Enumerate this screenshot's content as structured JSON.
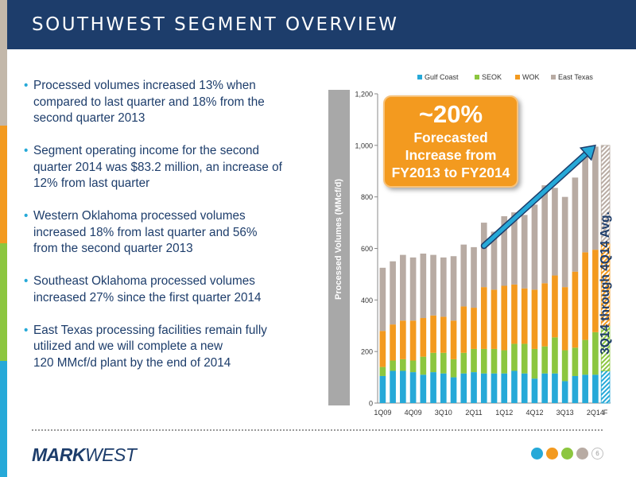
{
  "header": {
    "title": "SOUTHWEST SEGMENT OVERVIEW"
  },
  "colors": {
    "navy": "#1d3d6b",
    "accent_strip": [
      "#c3b8aa",
      "#f39a1f",
      "#8cc63f",
      "#26a9d8"
    ]
  },
  "bullets": [
    "Processed volumes increased 13% when\ncompared to last quarter and 18% from the\nsecond quarter 2013",
    "Segment operating income for the second\nquarter 2014 was $83.2 million, an increase of\n12% from last quarter",
    "Western Oklahoma processed volumes\nincreased 18% from last quarter and 56%\nfrom the second quarter 2013",
    "Southeast Oklahoma processed volumes\nincreased 27% since the first quarter 2014",
    "East Texas processing facilities remain fully\nutilized and we will complete a new\n120 MMcf/d plant by the end of 2014"
  ],
  "callout": {
    "big": "~20%",
    "small": "Forecasted\nIncrease from\nFY2013 to FY2014"
  },
  "avg_label": "3Q14 through 4Q14 Avg.",
  "footer": {
    "logo_mark": "MARK",
    "logo_west": "WEST",
    "page": "6",
    "icons": [
      "social-icon-1",
      "social-icon-2",
      "social-icon-3",
      "social-icon-4"
    ]
  },
  "chart_data": {
    "type": "bar",
    "stacked": true,
    "ylabel": "Processed Volumes (MMcf/d)",
    "ylim": [
      0,
      1200
    ],
    "yticks": [
      0,
      200,
      400,
      600,
      800,
      1000,
      1200
    ],
    "yticks_text": [
      "0",
      "200",
      "400",
      "600",
      "800",
      "1,000",
      "1,200"
    ],
    "categories": [
      "1Q09",
      "2Q09",
      "3Q09",
      "4Q09",
      "1Q10",
      "2Q10",
      "3Q10",
      "4Q10",
      "1Q11",
      "2Q11",
      "3Q11",
      "4Q11",
      "1Q12",
      "2Q12",
      "3Q12",
      "4Q12",
      "1Q13",
      "2Q13",
      "3Q13",
      "4Q13",
      "1Q14",
      "2Q14",
      "F"
    ],
    "xtick_labels": [
      "1Q09",
      "4Q09",
      "3Q10",
      "2Q11",
      "1Q12",
      "4Q12",
      "3Q13",
      "2Q14",
      "F"
    ],
    "xtick_indices": [
      0,
      3,
      6,
      9,
      12,
      15,
      18,
      21,
      22
    ],
    "legend": [
      "Gulf Coast",
      "SEOK",
      "WOK",
      "East Texas"
    ],
    "legend_position": "top",
    "series": [
      {
        "name": "Gulf Coast",
        "color": "#26a9d8",
        "values": [
          105,
          125,
          125,
          120,
          110,
          120,
          115,
          100,
          115,
          120,
          115,
          115,
          115,
          125,
          115,
          95,
          115,
          115,
          85,
          105,
          110,
          110,
          125
        ]
      },
      {
        "name": "SEOK",
        "color": "#8cc63f",
        "values": [
          35,
          40,
          45,
          45,
          70,
          75,
          80,
          70,
          80,
          90,
          95,
          95,
          90,
          105,
          115,
          115,
          105,
          140,
          120,
          110,
          135,
          165,
          175
        ]
      },
      {
        "name": "WOK",
        "color": "#f39a1f",
        "values": [
          140,
          140,
          150,
          155,
          150,
          145,
          140,
          150,
          180,
          160,
          240,
          230,
          250,
          230,
          215,
          230,
          245,
          240,
          245,
          295,
          340,
          320,
          320
        ]
      },
      {
        "name": "East Texas",
        "color": "#b8aba3",
        "values": [
          245,
          245,
          255,
          245,
          250,
          235,
          230,
          250,
          240,
          235,
          250,
          225,
          270,
          280,
          285,
          330,
          380,
          340,
          350,
          365,
          385,
          400,
          380
        ]
      }
    ],
    "forecast_total": 1000,
    "forecast_category": "F",
    "trend_arrow": {
      "from": [
        10,
        610
      ],
      "to": [
        21,
        1000
      ]
    }
  }
}
